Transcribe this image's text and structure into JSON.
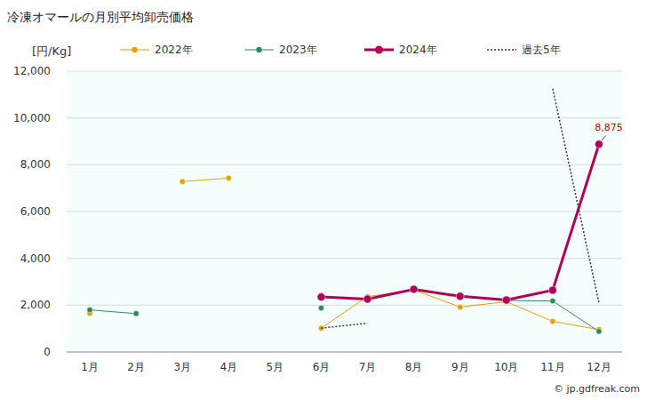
{
  "chart_data": {
    "type": "line",
    "title": "冷凍オマールの月別平均卸売価格",
    "y_label": "[円/Kg]",
    "source": "© jp.gdfreak.com",
    "categories": [
      "1月",
      "2月",
      "3月",
      "4月",
      "5月",
      "6月",
      "7月",
      "8月",
      "9月",
      "10月",
      "11月",
      "12月"
    ],
    "series": [
      {
        "name": "2022年",
        "color": "#e3a200",
        "marker": "circle",
        "line_style": "solid",
        "values": [
          1650,
          null,
          7280,
          7430,
          null,
          1020,
          2370,
          2650,
          1920,
          2150,
          1310,
          960
        ]
      },
      {
        "name": "2023年",
        "color": "#2e8b57",
        "marker": "circle",
        "line_style": "solid",
        "values": [
          1800,
          1640,
          null,
          null,
          null,
          1880,
          null,
          2680,
          2380,
          2200,
          2180,
          880
        ]
      },
      {
        "name": "2024年",
        "color": "#b0005a",
        "marker": "circle",
        "line_style": "bold",
        "values": [
          null,
          null,
          null,
          null,
          null,
          2350,
          2260,
          2680,
          2380,
          2220,
          2640,
          8875
        ]
      },
      {
        "name": "過去5年",
        "color": "#333333",
        "marker": "none",
        "line_style": "dotted",
        "values": [
          null,
          null,
          null,
          null,
          null,
          1020,
          1230,
          null,
          null,
          null,
          11250,
          2100
        ]
      }
    ],
    "annotations": [
      {
        "label": "8,875",
        "value": 8875,
        "category": "12月",
        "color": "#c00000"
      }
    ],
    "ylim": [
      0,
      12000
    ],
    "yticks": [
      0,
      {
        "value": 2000,
        "label": "2,000"
      },
      {
        "value": 4000,
        "label": "4,000"
      },
      {
        "value": 6000,
        "label": "6,000"
      },
      {
        "value": 8000,
        "label": "8,000"
      },
      {
        "value": 10000,
        "label": "10,000"
      },
      {
        "value": 12000,
        "label": "12,000"
      }
    ],
    "grid": true,
    "legend": "top"
  }
}
